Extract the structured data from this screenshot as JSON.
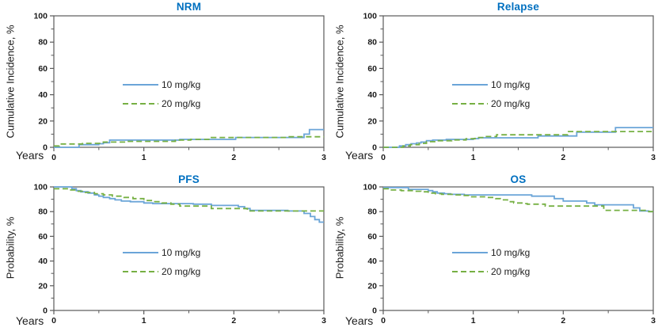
{
  "figure": {
    "background": "#ffffff"
  },
  "colors": {
    "title_blue": "#0070C0",
    "series_10mgkg": "#6BA5D8",
    "series_20mgkg": "#76B043",
    "axis": "#5a5a5a",
    "tick_label": "#1a1a1a"
  },
  "chart_data": [
    {
      "type": "line",
      "subtype": "kaplan-meier-step",
      "title": "NRM",
      "xlabel": "Years",
      "ylabel": "Cumulative Incidence, %",
      "xlim": [
        0,
        3
      ],
      "ylim": [
        0,
        100
      ],
      "x_ticks": [
        0,
        1,
        2,
        3
      ],
      "x_minor_ticks": [
        0.5,
        1.5,
        2.5
      ],
      "y_ticks": [
        0,
        20,
        40,
        60,
        80,
        100
      ],
      "y_minor_ticks": [
        10,
        30,
        50,
        70,
        90
      ],
      "grid": false,
      "legend_position": "inside-center-left",
      "series": [
        {
          "name": "10 mg/kg",
          "style": "solid",
          "color": "#6BA5D8",
          "points": [
            [
              0,
              0
            ],
            [
              0.28,
              2
            ],
            [
              0.5,
              2.7
            ],
            [
              0.55,
              3.5
            ],
            [
              0.62,
              5.5
            ],
            [
              1.4,
              6
            ],
            [
              2.02,
              7.5
            ],
            [
              2.78,
              10
            ],
            [
              2.84,
              13.5
            ],
            [
              3,
              13.5
            ]
          ]
        },
        {
          "name": "20 mg/kg",
          "style": "dashed",
          "color": "#76B043",
          "points": [
            [
              0,
              1
            ],
            [
              0.06,
              2.5
            ],
            [
              0.32,
              3
            ],
            [
              0.55,
              4
            ],
            [
              0.8,
              4.5
            ],
            [
              1.35,
              5.5
            ],
            [
              1.52,
              6
            ],
            [
              1.75,
              7.5
            ],
            [
              2.6,
              8
            ],
            [
              3,
              8
            ]
          ]
        }
      ]
    },
    {
      "type": "line",
      "subtype": "kaplan-meier-step",
      "title": "Relapse",
      "xlabel": "Years",
      "ylabel": "Cumulative Incidence, %",
      "xlim": [
        0,
        3
      ],
      "ylim": [
        0,
        100
      ],
      "x_ticks": [
        0,
        1,
        2,
        3
      ],
      "x_minor_ticks": [
        0.5,
        1.5,
        2.5
      ],
      "y_ticks": [
        0,
        20,
        40,
        60,
        80,
        100
      ],
      "y_minor_ticks": [
        10,
        30,
        50,
        70,
        90
      ],
      "grid": false,
      "legend_position": "inside-center-left",
      "series": [
        {
          "name": "10 mg/kg",
          "style": "solid",
          "color": "#6BA5D8",
          "points": [
            [
              0,
              0
            ],
            [
              0.18,
              1
            ],
            [
              0.25,
              2
            ],
            [
              0.31,
              2.7
            ],
            [
              0.37,
              3.3
            ],
            [
              0.42,
              4
            ],
            [
              0.48,
              5
            ],
            [
              0.55,
              5.5
            ],
            [
              0.7,
              6
            ],
            [
              1.0,
              6.6
            ],
            [
              1.06,
              7.2
            ],
            [
              1.72,
              8.6
            ],
            [
              2.15,
              11.5
            ],
            [
              2.58,
              15
            ],
            [
              3,
              15
            ]
          ]
        },
        {
          "name": "20 mg/kg",
          "style": "dashed",
          "color": "#76B043",
          "points": [
            [
              0,
              0
            ],
            [
              0.22,
              1
            ],
            [
              0.3,
              2
            ],
            [
              0.4,
              3
            ],
            [
              0.48,
              4.3
            ],
            [
              0.6,
              5
            ],
            [
              0.76,
              5.6
            ],
            [
              0.92,
              6.5
            ],
            [
              1.02,
              7.5
            ],
            [
              1.12,
              8.2
            ],
            [
              1.26,
              9.5
            ],
            [
              2.05,
              12
            ],
            [
              3,
              12
            ]
          ]
        }
      ]
    },
    {
      "type": "line",
      "subtype": "kaplan-meier-step",
      "title": "PFS",
      "xlabel": "Years",
      "ylabel": "Probability, %",
      "xlim": [
        0,
        3
      ],
      "ylim": [
        0,
        100
      ],
      "x_ticks": [
        0,
        1,
        2,
        3
      ],
      "x_minor_ticks": [
        0.5,
        1.5,
        2.5
      ],
      "y_ticks": [
        0,
        20,
        40,
        60,
        80,
        100
      ],
      "y_minor_ticks": [
        10,
        30,
        50,
        70,
        90
      ],
      "grid": false,
      "legend_position": "inside-center-left",
      "series": [
        {
          "name": "10 mg/kg",
          "style": "solid",
          "color": "#6BA5D8",
          "points": [
            [
              0,
              100
            ],
            [
              0.2,
              98.5
            ],
            [
              0.25,
              97
            ],
            [
              0.3,
              96
            ],
            [
              0.38,
              95
            ],
            [
              0.45,
              93.5
            ],
            [
              0.5,
              92.5
            ],
            [
              0.55,
              91.5
            ],
            [
              0.62,
              90.5
            ],
            [
              0.68,
              89.5
            ],
            [
              0.75,
              88.5
            ],
            [
              0.85,
              88
            ],
            [
              1.0,
              87
            ],
            [
              1.1,
              86.5
            ],
            [
              1.55,
              86
            ],
            [
              1.75,
              85
            ],
            [
              2.05,
              84
            ],
            [
              2.12,
              82.5
            ],
            [
              2.18,
              81
            ],
            [
              2.6,
              80.5
            ],
            [
              2.78,
              78.5
            ],
            [
              2.85,
              76
            ],
            [
              2.9,
              73.5
            ],
            [
              2.95,
              71.5
            ],
            [
              3,
              71.5
            ]
          ]
        },
        {
          "name": "20 mg/kg",
          "style": "dashed",
          "color": "#76B043",
          "points": [
            [
              0,
              98.5
            ],
            [
              0.15,
              97.5
            ],
            [
              0.25,
              96.5
            ],
            [
              0.35,
              95.5
            ],
            [
              0.45,
              94.5
            ],
            [
              0.55,
              93.5
            ],
            [
              0.65,
              92.5
            ],
            [
              0.78,
              91.5
            ],
            [
              0.88,
              90.5
            ],
            [
              1.0,
              89
            ],
            [
              1.1,
              88
            ],
            [
              1.2,
              87
            ],
            [
              1.3,
              86
            ],
            [
              1.4,
              84.5
            ],
            [
              1.75,
              82.5
            ],
            [
              2.15,
              80.5
            ],
            [
              3,
              80.5
            ]
          ]
        }
      ]
    },
    {
      "type": "line",
      "subtype": "kaplan-meier-step",
      "title": "OS",
      "xlabel": "Years",
      "ylabel": "Probability, %",
      "xlim": [
        0,
        3
      ],
      "ylim": [
        0,
        100
      ],
      "x_ticks": [
        0,
        1,
        2,
        3
      ],
      "x_minor_ticks": [
        0.5,
        1.5,
        2.5
      ],
      "y_ticks": [
        0,
        20,
        40,
        60,
        80,
        100
      ],
      "y_minor_ticks": [
        10,
        30,
        50,
        70,
        90
      ],
      "grid": false,
      "legend_position": "inside-center-left",
      "series": [
        {
          "name": "10 mg/kg",
          "style": "solid",
          "color": "#6BA5D8",
          "points": [
            [
              0,
              99.5
            ],
            [
              0.28,
              98
            ],
            [
              0.5,
              97
            ],
            [
              0.55,
              96
            ],
            [
              0.6,
              95
            ],
            [
              0.68,
              94.5
            ],
            [
              0.75,
              94
            ],
            [
              0.9,
              93.5
            ],
            [
              1.65,
              92.5
            ],
            [
              1.9,
              90.5
            ],
            [
              2.0,
              88.5
            ],
            [
              2.26,
              87
            ],
            [
              2.35,
              85.5
            ],
            [
              2.78,
              83
            ],
            [
              2.85,
              80.5
            ],
            [
              2.95,
              80
            ],
            [
              3,
              80
            ]
          ]
        },
        {
          "name": "20 mg/kg",
          "style": "dashed",
          "color": "#76B043",
          "points": [
            [
              0,
              98.5
            ],
            [
              0.08,
              97.5
            ],
            [
              0.2,
              97
            ],
            [
              0.35,
              96.5
            ],
            [
              0.42,
              96
            ],
            [
              0.5,
              95
            ],
            [
              0.58,
              94.5
            ],
            [
              0.65,
              94
            ],
            [
              0.8,
              93.5
            ],
            [
              0.9,
              93
            ],
            [
              0.95,
              92
            ],
            [
              1.15,
              91.5
            ],
            [
              1.25,
              90.5
            ],
            [
              1.3,
              89.5
            ],
            [
              1.38,
              88
            ],
            [
              1.45,
              87
            ],
            [
              1.55,
              86.5
            ],
            [
              1.6,
              86
            ],
            [
              1.8,
              84.5
            ],
            [
              2.45,
              81
            ],
            [
              2.95,
              80
            ],
            [
              3,
              80
            ]
          ]
        }
      ]
    }
  ]
}
